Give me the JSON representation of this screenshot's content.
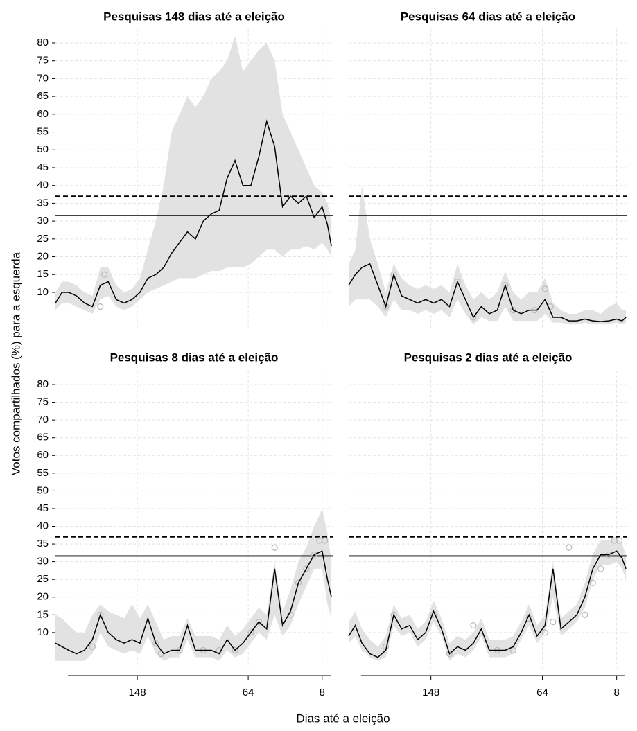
{
  "ylabel": "Votos compartilhados (%) para a esquerda",
  "xlabel": "Dias até a eleição",
  "chart_data": [
    {
      "type": "line",
      "title": "Pesquisas 148 dias até a eleição",
      "xlim": [
        210,
        0
      ],
      "ylim": [
        0,
        82
      ],
      "xticks": [
        148,
        64,
        8
      ],
      "yticks": [
        10,
        15,
        20,
        25,
        30,
        35,
        40,
        45,
        50,
        55,
        60,
        65,
        70,
        75,
        80
      ],
      "show_yticklabels": true,
      "show_xaxis": false,
      "grid": true,
      "reference_lines": [
        {
          "value": 31.6,
          "style": "solid"
        },
        {
          "value": 37,
          "style": "dashed"
        }
      ],
      "x": [
        210,
        205,
        200,
        194,
        188,
        182,
        176,
        170,
        164,
        158,
        152,
        146,
        140,
        134,
        128,
        122,
        116,
        110,
        104,
        98,
        92,
        86,
        80,
        74,
        68,
        62,
        56,
        50,
        44,
        38,
        32,
        26,
        20,
        14,
        8,
        4,
        1
      ],
      "line": {
        "color": "#000000",
        "values": [
          7,
          10,
          10,
          9,
          7,
          6,
          12,
          13,
          8,
          7,
          8,
          10,
          14,
          15,
          17,
          21,
          24,
          27,
          25,
          30,
          32,
          33,
          42,
          47,
          40,
          40,
          48,
          58,
          51,
          34,
          37,
          35,
          37,
          31,
          34,
          29,
          23
        ]
      },
      "band": {
        "color": "#e2e2e2",
        "lower": [
          5,
          7,
          7,
          6,
          5,
          4,
          8,
          9,
          6,
          5,
          6,
          8,
          10,
          11,
          12,
          13,
          14,
          14,
          14,
          15,
          16,
          16,
          17,
          17,
          17,
          18,
          20,
          22,
          22,
          20,
          22,
          22,
          23,
          22,
          24,
          22,
          20
        ],
        "upper": [
          10,
          13,
          13,
          12,
          10,
          9,
          17,
          17,
          12,
          10,
          11,
          14,
          22,
          30,
          40,
          55,
          60,
          65,
          62,
          65,
          70,
          72,
          75,
          82,
          72,
          75,
          78,
          80,
          75,
          60,
          55,
          50,
          45,
          40,
          38,
          35,
          30
        ]
      },
      "polls": {
        "color": "#bbbbbb",
        "x": [
          176,
          173
        ],
        "values": [
          6,
          15
        ]
      }
    },
    {
      "type": "line",
      "title": "Pesquisas 64 dias até a eleição",
      "xlim": [
        210,
        0
      ],
      "ylim": [
        0,
        82
      ],
      "xticks": [
        148,
        64,
        8
      ],
      "yticks": [
        10,
        15,
        20,
        25,
        30,
        35,
        40,
        45,
        50,
        55,
        60,
        65,
        70,
        75,
        80
      ],
      "show_yticklabels": false,
      "show_xaxis": false,
      "grid": true,
      "reference_lines": [
        {
          "value": 31.6,
          "style": "solid"
        },
        {
          "value": 37,
          "style": "dashed"
        }
      ],
      "x": [
        210,
        205,
        200,
        194,
        188,
        182,
        176,
        170,
        164,
        158,
        152,
        146,
        140,
        134,
        128,
        122,
        116,
        110,
        104,
        98,
        92,
        86,
        80,
        74,
        68,
        62,
        56,
        50,
        44,
        38,
        32,
        26,
        20,
        14,
        8,
        4,
        1
      ],
      "line": {
        "color": "#000000",
        "values": [
          12,
          15,
          17,
          18,
          12,
          6,
          15,
          9,
          8,
          7,
          8,
          7,
          8,
          6,
          13,
          8,
          3,
          6,
          4,
          5,
          12,
          5,
          4,
          5,
          5,
          8,
          3,
          3,
          2,
          2,
          2.5,
          2,
          1.8,
          2,
          2.5,
          2,
          3
        ]
      },
      "band": {
        "color": "#e2e2e2",
        "lower": [
          6,
          8,
          8,
          8,
          6,
          3,
          8,
          5,
          5,
          4,
          5,
          4,
          5,
          3,
          8,
          4,
          1,
          3,
          2,
          2,
          6,
          2,
          2,
          2,
          2,
          4,
          1.5,
          1.5,
          1,
          1,
          1.5,
          1,
          1,
          1,
          1.5,
          1,
          1.5
        ],
        "upper": [
          18,
          22,
          40,
          25,
          18,
          10,
          18,
          14,
          12,
          11,
          12,
          11,
          12,
          10,
          18,
          12,
          8,
          10,
          8,
          10,
          16,
          10,
          8,
          10,
          10,
          14,
          7,
          5,
          4,
          4,
          5,
          5,
          4,
          6,
          7,
          5,
          5
        ]
      },
      "polls": {
        "color": "#bbbbbb",
        "x": [
          182,
          176,
          128,
          116,
          92,
          86,
          70,
          62,
          58
        ],
        "values": [
          6,
          15,
          13,
          3,
          12,
          5,
          5,
          11,
          6
        ]
      }
    },
    {
      "type": "line",
      "title": "Pesquisas 8 dias até a eleição",
      "xlim": [
        210,
        0
      ],
      "ylim": [
        0,
        82
      ],
      "xticks": [
        148,
        64,
        8
      ],
      "yticks": [
        10,
        15,
        20,
        25,
        30,
        35,
        40,
        45,
        50,
        55,
        60,
        65,
        70,
        75,
        80
      ],
      "show_yticklabels": true,
      "show_xaxis": true,
      "grid": true,
      "reference_lines": [
        {
          "value": 31.6,
          "style": "solid"
        },
        {
          "value": 37,
          "style": "dashed"
        }
      ],
      "x": [
        210,
        205,
        200,
        194,
        188,
        182,
        176,
        170,
        164,
        158,
        152,
        146,
        140,
        134,
        128,
        122,
        116,
        110,
        104,
        98,
        92,
        86,
        80,
        74,
        68,
        62,
        56,
        50,
        44,
        38,
        32,
        26,
        20,
        14,
        8,
        4,
        1
      ],
      "line": {
        "color": "#000000",
        "values": [
          7,
          6,
          5,
          4,
          5,
          8,
          15,
          10,
          8,
          7,
          8,
          7,
          14,
          7,
          4,
          5,
          5,
          12,
          5,
          5,
          5,
          4,
          8,
          5,
          7,
          10,
          13,
          11,
          28,
          12,
          16,
          24,
          28,
          32,
          33,
          25,
          20
        ]
      },
      "band": {
        "color": "#e2e2e2",
        "lower": [
          2,
          2,
          2,
          2,
          2,
          4,
          10,
          6,
          5,
          4,
          5,
          4,
          9,
          4,
          2,
          3,
          3,
          8,
          3,
          3,
          3,
          2,
          5,
          3,
          4,
          7,
          10,
          8,
          15,
          9,
          12,
          18,
          23,
          28,
          28,
          18,
          14
        ],
        "upper": [
          15,
          14,
          12,
          10,
          10,
          15,
          18,
          16,
          15,
          14,
          18,
          14,
          18,
          13,
          8,
          9,
          9,
          14,
          9,
          9,
          9,
          8,
          12,
          9,
          11,
          14,
          17,
          15,
          30,
          16,
          22,
          30,
          34,
          40,
          45,
          38,
          30
        ]
      },
      "polls": {
        "color": "#bbbbbb",
        "x": [
          182,
          176,
          134,
          130,
          116,
          98,
          86,
          74,
          62,
          56,
          44,
          32,
          26,
          20,
          14,
          10,
          6
        ],
        "values": [
          6,
          15,
          7,
          4,
          5,
          5,
          5,
          5,
          10,
          13,
          34,
          15,
          24,
          28,
          32,
          36,
          36
        ]
      }
    },
    {
      "type": "line",
      "title": "Pesquisas 2 dias até a eleição",
      "xlim": [
        210,
        0
      ],
      "ylim": [
        0,
        82
      ],
      "xticks": [
        148,
        64,
        8
      ],
      "yticks": [
        10,
        15,
        20,
        25,
        30,
        35,
        40,
        45,
        50,
        55,
        60,
        65,
        70,
        75,
        80
      ],
      "show_yticklabels": false,
      "show_xaxis": true,
      "grid": true,
      "reference_lines": [
        {
          "value": 31.6,
          "style": "solid"
        },
        {
          "value": 37,
          "style": "dashed"
        }
      ],
      "x": [
        210,
        205,
        200,
        194,
        188,
        182,
        176,
        170,
        164,
        158,
        152,
        146,
        140,
        134,
        128,
        122,
        116,
        110,
        104,
        98,
        92,
        86,
        80,
        74,
        68,
        62,
        56,
        50,
        44,
        38,
        32,
        26,
        20,
        14,
        8,
        4,
        1
      ],
      "line": {
        "color": "#000000",
        "values": [
          9,
          12,
          7,
          4,
          3,
          5,
          15,
          11,
          12,
          8,
          10,
          16,
          11,
          4,
          6,
          5,
          7,
          11,
          5,
          5,
          5,
          6,
          10,
          15,
          9,
          12,
          28,
          11,
          13,
          15,
          20,
          28,
          32,
          32,
          33,
          31,
          28
        ]
      },
      "band": {
        "color": "#e2e2e2",
        "lower": [
          7,
          9,
          5,
          3,
          2,
          3,
          12,
          9,
          10,
          6,
          8,
          13,
          9,
          2,
          4,
          3,
          5,
          9,
          3,
          3,
          3,
          4,
          8,
          12,
          7,
          10,
          20,
          9,
          11,
          13,
          17,
          25,
          29,
          29,
          30,
          28,
          25
        ],
        "upper": [
          13,
          16,
          11,
          8,
          6,
          9,
          18,
          14,
          15,
          11,
          13,
          19,
          14,
          7,
          9,
          8,
          10,
          14,
          8,
          8,
          8,
          9,
          13,
          18,
          12,
          15,
          30,
          14,
          16,
          18,
          24,
          32,
          36,
          36,
          37,
          35,
          32
        ]
      },
      "polls": {
        "color": "#bbbbbb",
        "x": [
          182,
          176,
          146,
          134,
          116,
          98,
          86,
          74,
          62,
          56,
          44,
          32,
          26,
          20,
          14,
          10,
          6
        ],
        "values": [
          6,
          15,
          15,
          4,
          12,
          5,
          5,
          14,
          10,
          13,
          34,
          15,
          24,
          28,
          32,
          36,
          36
        ]
      }
    }
  ]
}
